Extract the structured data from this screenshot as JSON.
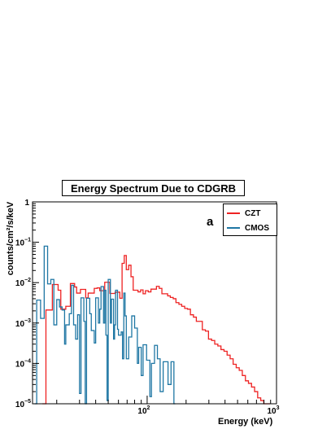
{
  "chart_data": {
    "type": "step",
    "title": "Energy Spectrum Due to CDGRB",
    "panel_label": "a",
    "xlabel": "Energy (keV)",
    "ylabel": "counts/cm²/s/keV",
    "xscale": "log",
    "yscale": "log",
    "xlim": [
      13,
      1000
    ],
    "ylim": [
      1e-05,
      1
    ],
    "x_ticks": [
      {
        "value": 100,
        "label": "10",
        "exp": "2"
      },
      {
        "value": 1000,
        "label": "10",
        "exp": "3"
      }
    ],
    "y_ticks": [
      {
        "value": 1e-05,
        "label": "10",
        "exp": "−5"
      },
      {
        "value": 0.0001,
        "label": "10",
        "exp": "−4"
      },
      {
        "value": 0.001,
        "label": "10",
        "exp": "−3"
      },
      {
        "value": 0.01,
        "label": "10",
        "exp": "−2"
      },
      {
        "value": 0.1,
        "label": "10",
        "exp": "−1"
      },
      {
        "value": 1,
        "label": "1",
        "exp": ""
      }
    ],
    "legend_position": "top-right",
    "grid": false,
    "series": [
      {
        "name": "CZT",
        "color": "#ee2222",
        "bin_edges": [
          15.5,
          16.5,
          17.5,
          18.5,
          19.5,
          20.5,
          21.5,
          22.5,
          23.5,
          24.5,
          25.5,
          26.5,
          27.5,
          28.5,
          29.5,
          30.5,
          32,
          33.5,
          35,
          37,
          39,
          41,
          43,
          45,
          47,
          49,
          51.5,
          54,
          56.5,
          59,
          61.5,
          64,
          66.5,
          69,
          72,
          75,
          78,
          81,
          85,
          89,
          93,
          97,
          102,
          107,
          112,
          118,
          124,
          130,
          137,
          144,
          151,
          159,
          167,
          176,
          185,
          195,
          205,
          216,
          228,
          240,
          253,
          267,
          282,
          298,
          315,
          333,
          352,
          372,
          393,
          415,
          438,
          462,
          488,
          515,
          544,
          575,
          607,
          641,
          677,
          715,
          755,
          797,
          842,
          889
        ],
        "values": [
          1e-05,
          0.0021,
          0.0021,
          0.009,
          0.009,
          0.0065,
          0.0022,
          0.0022,
          0.0026,
          0.0026,
          0.0095,
          0.0095,
          0.0078,
          0.0055,
          0.0055,
          0.0068,
          0.0068,
          0.0042,
          0.0055,
          0.0055,
          0.0072,
          0.0074,
          0.0063,
          0.0063,
          0.0102,
          0.0102,
          0.0054,
          0.0054,
          0.0058,
          0.0058,
          0.0041,
          0.03,
          0.047,
          0.021,
          0.027,
          0.014,
          0.0065,
          0.0065,
          0.0059,
          0.0066,
          0.0053,
          0.0063,
          0.0059,
          0.0069,
          0.0069,
          0.0081,
          0.0072,
          0.0053,
          0.0053,
          0.0047,
          0.0043,
          0.004,
          0.0032,
          0.0029,
          0.0026,
          0.0023,
          0.0022,
          0.0016,
          0.0014,
          0.0011,
          0.0011,
          0.00068,
          0.00063,
          0.0004,
          0.00037,
          0.0003,
          0.00027,
          0.00022,
          0.0002,
          0.00016,
          0.00013,
          9.5e-05,
          7.8e-05,
          6.7e-05,
          5e-05,
          3.7e-05,
          3.2e-05,
          2.6e-05,
          2e-05,
          1.4e-05,
          1.2e-05,
          1e-05,
          1e-05
        ]
      },
      {
        "name": "CMOS",
        "color": "#1f77a4",
        "bin_edges": [
          13.5,
          14,
          14.5,
          15,
          15.5,
          16,
          16.5,
          17,
          17.5,
          18,
          18.5,
          19,
          19.5,
          20,
          20.5,
          21,
          21.5,
          22,
          22.5,
          23,
          23.5,
          24,
          24.5,
          25,
          25.5,
          26,
          26.5,
          27,
          27.5,
          28,
          28.5,
          29,
          29.5,
          30,
          30.8,
          31.6,
          32.4,
          33.2,
          34,
          35,
          36,
          37,
          38,
          39,
          40,
          41,
          42,
          43,
          44,
          45,
          46,
          47,
          48,
          49,
          50,
          51,
          52,
          53,
          54,
          55,
          56,
          57,
          58,
          59,
          60,
          61.5,
          63,
          64.5,
          66,
          67.5,
          69,
          70.5,
          72,
          74,
          76,
          78,
          80,
          82,
          84,
          86,
          88,
          90,
          93,
          96,
          99,
          102,
          105,
          108,
          111,
          114,
          117,
          120,
          123,
          126,
          129,
          133,
          137,
          141,
          145,
          149,
          153,
          157,
          161,
          165
        ],
        "values": [
          1e-05,
          0.0037,
          0.0037,
          0.0013,
          0.0013,
          0.08,
          0.08,
          0.0093,
          0.0093,
          0.012,
          0.012,
          0.0009,
          0.0009,
          0.0038,
          0.0038,
          0.0025,
          0.0025,
          0.0021,
          0.0021,
          0.0003,
          0.0009,
          0.0009,
          0.0009,
          0.0017,
          0.0017,
          0.0086,
          0.0086,
          0.0009,
          0.0009,
          0.0004,
          0.0004,
          0.0016,
          0.0016,
          1.8e-05,
          0.0042,
          0.0042,
          0.0011,
          1e-05,
          0.0041,
          0.0041,
          0.0017,
          0.00065,
          0.00065,
          0.00032,
          0.0042,
          0.0042,
          0.001,
          0.0022,
          0.008,
          0.008,
          0.001,
          0.0065,
          0.0005,
          1.2e-05,
          0.012,
          0.012,
          0.001,
          0.0039,
          0.0039,
          0.0004,
          0.0009,
          0.0065,
          0.0065,
          0.0007,
          0.0005,
          0.0005,
          0.0006,
          0.00013,
          0.0055,
          0.0015,
          0.00013,
          0.00013,
          0.00045,
          0.00045,
          0.0015,
          0.0015,
          0.00075,
          0.00075,
          0.0001,
          0.00025,
          0.00025,
          5e-05,
          0.00029,
          0.00029,
          0.00012,
          0.00012,
          1.5e-05,
          0.0001,
          0.0001,
          0.00028,
          0.00028,
          0.00013,
          0.00013,
          2e-05,
          2e-05,
          0.00011,
          0.00011,
          0.00011,
          3e-05,
          3e-05,
          0.00011,
          0.00011,
          1e-05
        ]
      }
    ]
  }
}
